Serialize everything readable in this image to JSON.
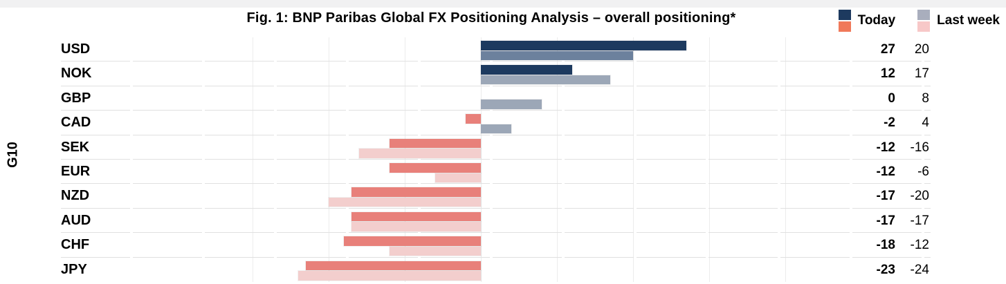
{
  "meta": {
    "title": "Fig. 1: BNP Paribas Global FX Positioning Analysis – overall positioning*",
    "group_label": "G10"
  },
  "legend": [
    {
      "label": "Today",
      "swatch_top": "#1d3a5f",
      "swatch_bottom": "#f0795a"
    },
    {
      "label": "Last week",
      "swatch_top": "#a9aebd",
      "swatch_bottom": "#f7c8c8"
    }
  ],
  "chart_data": {
    "type": "bar",
    "orientation": "horizontal",
    "title": "Fig. 1: BNP Paribas Global FX Positioning Analysis – overall positioning*",
    "group_label": "G10",
    "categories": [
      "USD",
      "NOK",
      "GBP",
      "CAD",
      "SEK",
      "EUR",
      "NZD",
      "AUD",
      "CHF",
      "JPY"
    ],
    "series": [
      {
        "name": "Today",
        "values": [
          27,
          12,
          0,
          -2,
          -12,
          -12,
          -17,
          -17,
          -18,
          -23
        ]
      },
      {
        "name": "Last week",
        "values": [
          20,
          17,
          8,
          4,
          -16,
          -6,
          -20,
          -17,
          -12,
          -24
        ]
      }
    ],
    "value_labels_shown": true,
    "xlim": [
      -30,
      40
    ],
    "gridline_step": 10,
    "grid": "vertical",
    "legend_position": "top-right",
    "zero_axis": 0
  },
  "colors": {
    "today_positive": "#1d3a5f",
    "today_negative": "#e8807a",
    "last_week_positive": "#9ca7b7",
    "last_week_positive_usd": "#6c819d",
    "last_week_negative": "#f3cecd",
    "top_strip": "#f1f1f2",
    "separator": "#e0e0e0",
    "gridline": "#ececec"
  }
}
